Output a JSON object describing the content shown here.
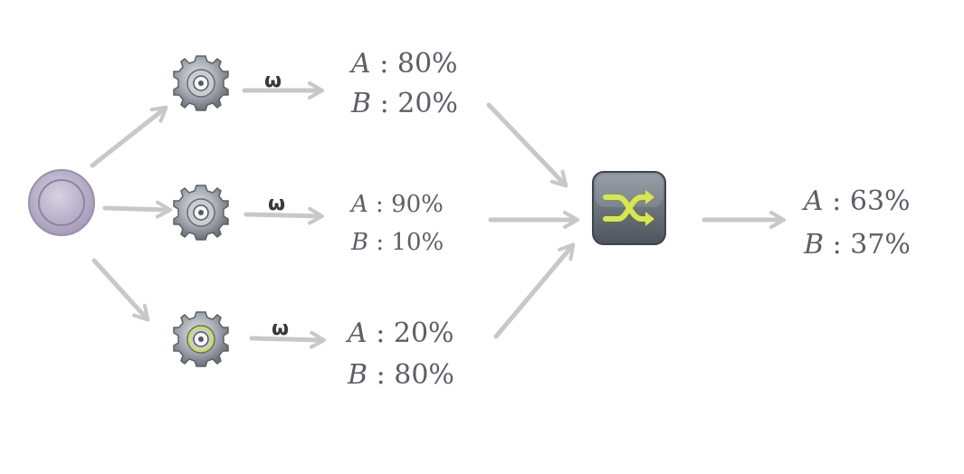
{
  "branches": [
    {
      "id": "top",
      "omega": "ω",
      "icon": "gear-icon",
      "rows": [
        {
          "var": "A",
          "sep": " : ",
          "pct": "80%"
        },
        {
          "var": "B",
          "sep": " : ",
          "pct": "20%"
        }
      ]
    },
    {
      "id": "middle",
      "omega": "ω",
      "icon": "gear-icon",
      "rows": [
        {
          "var": "A",
          "sep": " : ",
          "pct": "90%"
        },
        {
          "var": "B",
          "sep": " : ",
          "pct": "10%"
        }
      ]
    },
    {
      "id": "bottom",
      "omega": "ω",
      "icon": "gear-icon-highlighted",
      "rows": [
        {
          "var": "A",
          "sep": " : ",
          "pct": "20%"
        },
        {
          "var": "B",
          "sep": " : ",
          "pct": "80%"
        }
      ]
    }
  ],
  "source_node": {
    "icon": "source-circle-icon"
  },
  "combiner": {
    "icon": "shuffle-icon"
  },
  "result": {
    "rows": [
      {
        "var": "A",
        "sep": " : ",
        "pct": "63%"
      },
      {
        "var": "B",
        "sep": " : ",
        "pct": "37%"
      }
    ]
  },
  "colors": {
    "arrow": "#c8c8c8",
    "text": "#5e5e6a",
    "source_fill": "#b7aec7",
    "gear": "#8a8f98",
    "shuffle_bg": "#5e6670",
    "shuffle_arrow": "#d7e84a"
  }
}
